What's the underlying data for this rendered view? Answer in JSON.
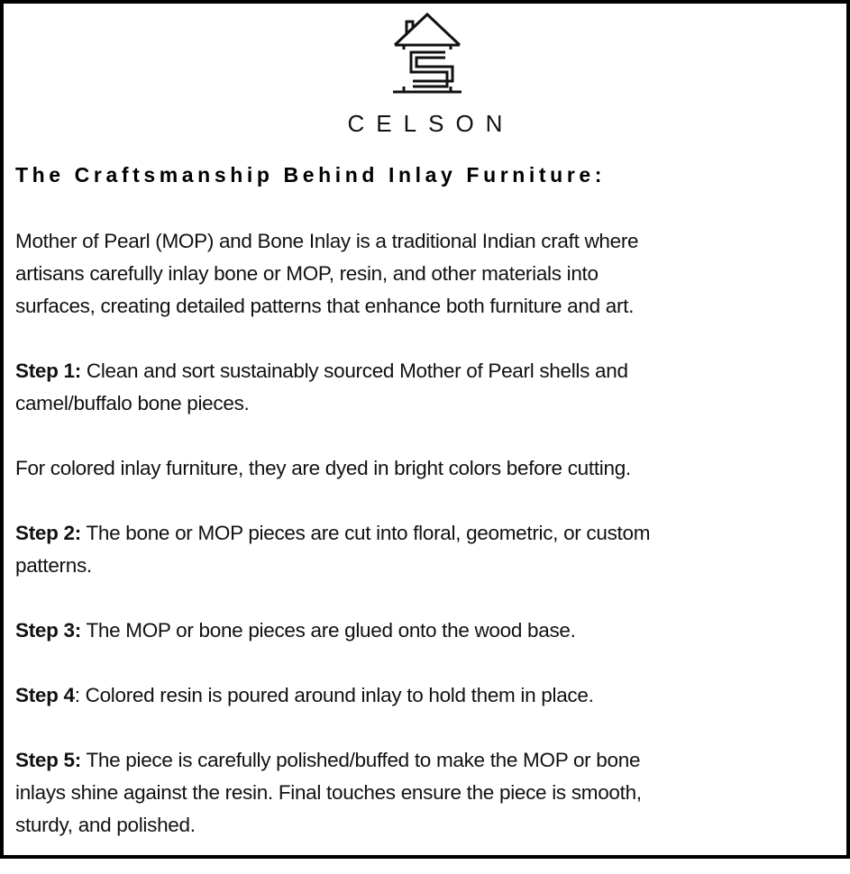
{
  "brand": {
    "logo_text": "CELSON",
    "logo_icon": "house-with-s-icon"
  },
  "heading": "The Craftsmanship Behind Inlay Furniture:",
  "intro": [
    "Mother of Pearl (MOP) and Bone Inlay is a traditional Indian craft where",
    "artisans carefully inlay bone or MOP, resin, and other materials into",
    "surfaces, creating detailed patterns that enhance both furniture and art."
  ],
  "step1": {
    "label": "Step 1:",
    "lines": [
      " Clean and sort sustainably sourced Mother of Pearl shells and",
      "camel/buffalo bone pieces."
    ]
  },
  "note": "For colored inlay furniture, they are dyed in bright colors before cutting.",
  "step2": {
    "label": "Step 2:",
    "lines": [
      " The bone or MOP pieces are cut into floral, geometric, or custom",
      "patterns."
    ]
  },
  "step3": {
    "label": "Step 3:",
    "lines": [
      " The MOP or bone pieces are glued onto the wood base."
    ]
  },
  "step4": {
    "label": "Step 4",
    "lines": [
      ": Colored resin is poured around inlay to hold them in place."
    ]
  },
  "step5": {
    "label": "Step 5:",
    "lines": [
      " The piece is carefully polished/buffed to make the MOP or bone",
      "inlays shine against the resin. Final touches ensure the piece is smooth,",
      "sturdy, and polished."
    ]
  }
}
